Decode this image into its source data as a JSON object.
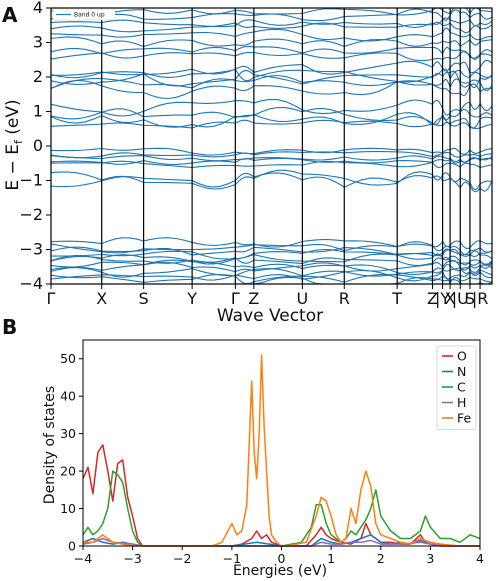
{
  "figure": {
    "panel_a_label": "A",
    "panel_b_label": "B"
  },
  "chart_data": [
    {
      "type": "line",
      "panel": "A",
      "xlabel": "Wave Vector",
      "ylabel": "E − E",
      "ylabel_sub": "f",
      "ylabel_unit": " (eV)",
      "ylim": [
        -4,
        4
      ],
      "yticks": [
        -4,
        -3,
        -2,
        -1,
        0,
        1,
        2,
        3,
        4
      ],
      "kpoints": [
        "Γ",
        "X",
        "S",
        "Y",
        "Γ",
        "Z",
        "U",
        "R",
        "T",
        "Z",
        "|Y",
        "X",
        "|U",
        "S",
        "|R"
      ],
      "kpoint_labels": [
        "Γ",
        "X",
        "S",
        "Y",
        "Γ",
        "Z",
        "U",
        "R",
        "T",
        "Z",
        "|Y",
        "X",
        "|U",
        "S",
        "|R"
      ],
      "legend": [
        "Band 0 up"
      ],
      "line_color": "#1f77b4",
      "grid": false,
      "bands_approx_energies_eV": [
        -3.95,
        -3.85,
        -3.75,
        -3.65,
        -3.55,
        -3.45,
        -3.35,
        -3.25,
        -3.15,
        -3.05,
        -2.95,
        -2.85,
        -1.05,
        -0.95,
        -0.55,
        -0.45,
        -0.35,
        -0.25,
        -0.15,
        0.6,
        0.75,
        0.85,
        1.15,
        1.7,
        1.8,
        1.95,
        2.05,
        2.25,
        2.6,
        2.75,
        3.0,
        3.2,
        3.45,
        3.6,
        3.75,
        3.9
      ]
    },
    {
      "type": "line",
      "panel": "B",
      "xlabel": "Energies (eV)",
      "ylabel": "Density of states",
      "xlim": [
        -4,
        4
      ],
      "ylim": [
        0,
        55
      ],
      "xticks": [
        -4,
        -3,
        -2,
        -1,
        0,
        1,
        2,
        3,
        4
      ],
      "yticks": [
        0,
        10,
        20,
        30,
        40,
        50
      ],
      "legend_position": "top-right",
      "grid": false,
      "series": [
        {
          "name": "O",
          "color": "#d62728",
          "x": [
            -4.0,
            -3.9,
            -3.8,
            -3.7,
            -3.6,
            -3.5,
            -3.4,
            -3.3,
            -3.2,
            -3.1,
            -3.0,
            -2.9,
            -2.8,
            -2.7,
            -1.0,
            -0.8,
            -0.6,
            -0.5,
            -0.4,
            -0.3,
            -0.2,
            0.0,
            0.5,
            0.7,
            0.8,
            0.9,
            1.0,
            1.2,
            1.4,
            1.6,
            1.7,
            1.8,
            1.9,
            2.0,
            2.2,
            2.4,
            2.6,
            2.8,
            2.9,
            3.0,
            3.2,
            3.5,
            4.0
          ],
          "y": [
            18,
            21,
            14,
            25,
            27,
            20,
            12,
            22,
            23,
            13,
            8,
            2,
            0,
            0,
            0,
            0.5,
            2,
            4,
            2,
            3,
            1,
            0,
            0,
            3,
            5,
            3,
            2,
            1,
            0.5,
            2,
            6,
            3,
            2,
            1,
            1,
            0.5,
            0.5,
            3,
            1,
            0.5,
            0,
            0,
            0
          ]
        },
        {
          "name": "N",
          "color": "#1f77b4",
          "x": [
            -4.0,
            -3.8,
            -3.6,
            -3.4,
            -3.2,
            -3.0,
            -2.8,
            -1.0,
            -0.5,
            0.0,
            0.6,
            0.8,
            1.0,
            1.2,
            1.4,
            1.6,
            1.8,
            2.0,
            2.2,
            2.4,
            2.6,
            2.8,
            3.0,
            3.4,
            4.0
          ],
          "y": [
            1,
            2,
            1,
            0.5,
            1,
            0.5,
            0,
            0,
            1,
            0,
            0,
            2,
            1,
            0.5,
            1,
            2,
            3,
            1,
            0.5,
            1,
            0.5,
            1.5,
            0.5,
            0,
            0
          ]
        },
        {
          "name": "C",
          "color": "#2ca02c",
          "x": [
            -4.0,
            -3.9,
            -3.8,
            -3.7,
            -3.6,
            -3.5,
            -3.4,
            -3.3,
            -3.2,
            -3.1,
            -3.0,
            -2.9,
            -2.8,
            -2.7,
            -1.0,
            0.0,
            0.4,
            0.6,
            0.7,
            0.8,
            0.9,
            1.0,
            1.1,
            1.2,
            1.3,
            1.4,
            1.5,
            1.6,
            1.7,
            1.8,
            1.9,
            2.0,
            2.1,
            2.2,
            2.4,
            2.6,
            2.8,
            2.9,
            3.0,
            3.2,
            3.4,
            3.6,
            3.8,
            4.0
          ],
          "y": [
            3,
            5,
            3,
            4,
            6,
            10,
            20,
            19,
            17,
            10,
            4,
            1,
            0,
            0,
            0,
            0,
            1,
            5,
            11,
            11,
            6,
            3,
            2,
            1,
            2,
            4,
            3,
            5,
            7,
            10,
            15,
            8,
            6,
            4,
            2,
            2,
            4,
            8,
            5,
            2,
            2,
            1,
            3,
            2
          ]
        },
        {
          "name": "H",
          "color": "#9467bd",
          "x": [
            -4.0,
            -3.8,
            -3.6,
            -3.4,
            -3.0,
            -2.8,
            -1.0,
            0.0,
            0.6,
            0.8,
            1.0,
            1.2,
            1.4,
            1.6,
            1.8,
            2.0,
            2.4,
            2.8,
            3.0,
            3.4,
            4.0
          ],
          "y": [
            0.5,
            1,
            2,
            1,
            0.5,
            0,
            0,
            0,
            0,
            1,
            0.5,
            0.5,
            1,
            1,
            1.5,
            0.5,
            0.5,
            1,
            0.5,
            0,
            0
          ]
        },
        {
          "name": "Fe",
          "color": "#ff7f0e",
          "x": [
            -4.0,
            -3.8,
            -3.6,
            -3.4,
            -3.2,
            -3.0,
            -2.8,
            -1.4,
            -1.2,
            -1.0,
            -0.9,
            -0.8,
            -0.7,
            -0.6,
            -0.55,
            -0.5,
            -0.45,
            -0.4,
            -0.35,
            -0.3,
            -0.25,
            -0.2,
            -0.1,
            0.0,
            0.1,
            0.5,
            0.7,
            0.8,
            0.9,
            1.0,
            1.1,
            1.2,
            1.3,
            1.4,
            1.5,
            1.6,
            1.7,
            1.8,
            1.9,
            2.0,
            2.2,
            2.4,
            2.6,
            2.8,
            3.0,
            3.2,
            3.6,
            4.0
          ],
          "y": [
            1,
            1,
            3,
            1,
            0.5,
            0,
            0,
            0,
            1,
            6,
            3,
            4,
            11,
            44,
            25,
            18,
            30,
            51,
            32,
            20,
            8,
            3,
            1,
            0,
            0,
            1,
            8,
            13,
            12,
            8,
            3,
            1,
            2,
            10,
            6,
            15,
            20,
            16,
            6,
            3,
            2,
            1,
            0.5,
            2,
            1,
            0.5,
            0,
            0
          ]
        }
      ]
    }
  ]
}
